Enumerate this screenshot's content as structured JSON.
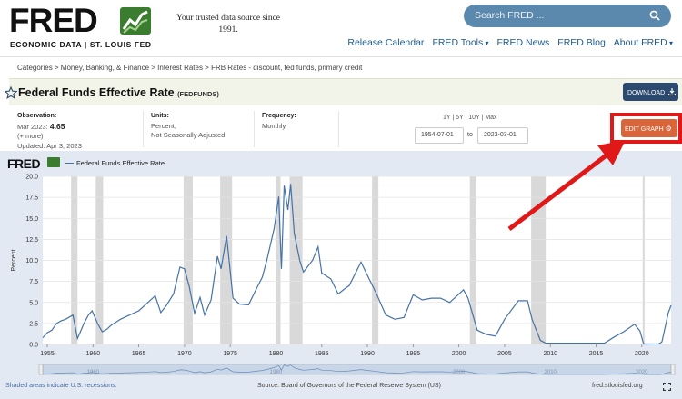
{
  "header": {
    "logo_text": "FRED",
    "logo_subtitle": "ECONOMIC DATA  |  ST. LOUIS FED",
    "tagline_line1": "Your trusted data source since",
    "tagline_line2": "1991.",
    "search_placeholder": "Search FRED ...",
    "nav": [
      "Release Calendar",
      "FRED Tools",
      "FRED News",
      "FRED Blog",
      "About FRED"
    ]
  },
  "breadcrumb": "Categories > Money, Banking, & Finance > Interest Rates > FRB Rates - discount, fed funds, primary credit",
  "series": {
    "title": "Federal Funds Effective Rate",
    "code": "(FEDFUNDS)",
    "download_label": "DOWNLOAD",
    "observation_label": "Observation:",
    "observation_period": "Mar 2023:",
    "observation_value": "4.65",
    "more": "(+ more)",
    "updated": "Updated: Apr 3, 2023",
    "units_label": "Units:",
    "units_line1": "Percent,",
    "units_line2": "Not Seasonally Adjusted",
    "frequency_label": "Frequency:",
    "frequency": "Monthly",
    "range_options": "1Y | 5Y | 10Y | Max",
    "start_date": "1954-07-01",
    "to_label": "to",
    "end_date": "2023-03-01",
    "edit_label": "EDIT GRAPH"
  },
  "graph": {
    "logo": "FRED",
    "legend": "Federal Funds Effective Rate",
    "footer_left": "Shaded areas indicate U.S. recessions.",
    "footer_center": "Source: Board of Governors of the Federal Reserve System (US)",
    "footer_right": "fred.stlouisfed.org"
  },
  "chart_data": {
    "type": "line",
    "ylabel": "Percent",
    "ylim": [
      0,
      20
    ],
    "yticks": [
      "0.0",
      "2.5",
      "5.0",
      "7.5",
      "10.0",
      "12.5",
      "15.0",
      "17.5",
      "20.0"
    ],
    "xlim": [
      1954.5,
      2023.2
    ],
    "xticks": [
      "1955",
      "1960",
      "1965",
      "1970",
      "1975",
      "1980",
      "1985",
      "1990",
      "1995",
      "2000",
      "2005",
      "2010",
      "2015",
      "2020"
    ],
    "navigator_ticks": [
      "1960",
      "1980",
      "2000",
      "2010",
      "2020"
    ],
    "recessions": [
      [
        1957.6,
        1958.3
      ],
      [
        1960.3,
        1961.1
      ],
      [
        1969.9,
        1970.9
      ],
      [
        1973.9,
        1975.2
      ],
      [
        1980.0,
        1980.5
      ],
      [
        1981.5,
        1982.9
      ],
      [
        1990.5,
        1991.2
      ],
      [
        2001.2,
        2001.9
      ],
      [
        2007.9,
        2009.5
      ],
      [
        2020.1,
        2020.3
      ]
    ],
    "line_color": "#4573a7",
    "series": [
      {
        "name": "Federal Funds Effective Rate",
        "points": [
          [
            1954.5,
            0.8
          ],
          [
            1955.0,
            1.4
          ],
          [
            1955.5,
            1.7
          ],
          [
            1956.0,
            2.5
          ],
          [
            1956.5,
            2.8
          ],
          [
            1957.0,
            3.0
          ],
          [
            1957.8,
            3.5
          ],
          [
            1958.3,
            0.7
          ],
          [
            1958.7,
            1.7
          ],
          [
            1959.0,
            2.5
          ],
          [
            1959.5,
            3.5
          ],
          [
            1959.9,
            4.0
          ],
          [
            1960.5,
            2.5
          ],
          [
            1961.0,
            1.5
          ],
          [
            1961.5,
            1.8
          ],
          [
            1962.0,
            2.3
          ],
          [
            1963.0,
            3.0
          ],
          [
            1964.0,
            3.5
          ],
          [
            1965.0,
            4.0
          ],
          [
            1966.0,
            5.0
          ],
          [
            1966.8,
            5.8
          ],
          [
            1967.4,
            3.8
          ],
          [
            1968.0,
            4.6
          ],
          [
            1968.8,
            6.0
          ],
          [
            1969.5,
            9.2
          ],
          [
            1970.0,
            9.0
          ],
          [
            1970.5,
            7.0
          ],
          [
            1971.1,
            3.7
          ],
          [
            1971.7,
            5.6
          ],
          [
            1972.2,
            3.5
          ],
          [
            1972.9,
            5.3
          ],
          [
            1973.6,
            10.5
          ],
          [
            1974.0,
            9.0
          ],
          [
            1974.6,
            12.9
          ],
          [
            1975.3,
            5.5
          ],
          [
            1976.0,
            4.8
          ],
          [
            1977.0,
            4.7
          ],
          [
            1977.8,
            6.5
          ],
          [
            1978.5,
            8.0
          ],
          [
            1979.0,
            10.0
          ],
          [
            1979.8,
            13.8
          ],
          [
            1980.3,
            17.6
          ],
          [
            1980.6,
            9.0
          ],
          [
            1980.9,
            18.9
          ],
          [
            1981.3,
            16.0
          ],
          [
            1981.6,
            19.1
          ],
          [
            1982.0,
            13.2
          ],
          [
            1982.6,
            10.0
          ],
          [
            1983.0,
            8.6
          ],
          [
            1984.0,
            10.0
          ],
          [
            1984.6,
            11.6
          ],
          [
            1985.0,
            8.5
          ],
          [
            1986.0,
            7.8
          ],
          [
            1986.8,
            6.0
          ],
          [
            1987.5,
            6.6
          ],
          [
            1988.0,
            7.0
          ],
          [
            1989.3,
            9.8
          ],
          [
            1990.0,
            8.2
          ],
          [
            1991.0,
            6.0
          ],
          [
            1992.0,
            3.5
          ],
          [
            1993.0,
            3.0
          ],
          [
            1994.0,
            3.2
          ],
          [
            1995.0,
            5.9
          ],
          [
            1996.0,
            5.3
          ],
          [
            1997.0,
            5.5
          ],
          [
            1998.0,
            5.5
          ],
          [
            1999.0,
            5.0
          ],
          [
            2000.5,
            6.5
          ],
          [
            2001.0,
            5.5
          ],
          [
            2002.0,
            1.7
          ],
          [
            2003.0,
            1.2
          ],
          [
            2004.0,
            1.0
          ],
          [
            2005.0,
            3.0
          ],
          [
            2006.5,
            5.2
          ],
          [
            2007.5,
            5.2
          ],
          [
            2008.0,
            3.0
          ],
          [
            2008.9,
            0.5
          ],
          [
            2009.5,
            0.15
          ],
          [
            2012.0,
            0.15
          ],
          [
            2015.9,
            0.15
          ],
          [
            2017.0,
            0.9
          ],
          [
            2018.0,
            1.5
          ],
          [
            2019.2,
            2.4
          ],
          [
            2019.8,
            1.6
          ],
          [
            2020.2,
            0.05
          ],
          [
            2021.9,
            0.08
          ],
          [
            2022.2,
            0.3
          ],
          [
            2022.6,
            2.3
          ],
          [
            2022.9,
            3.8
          ],
          [
            2023.2,
            4.65
          ]
        ]
      }
    ]
  }
}
